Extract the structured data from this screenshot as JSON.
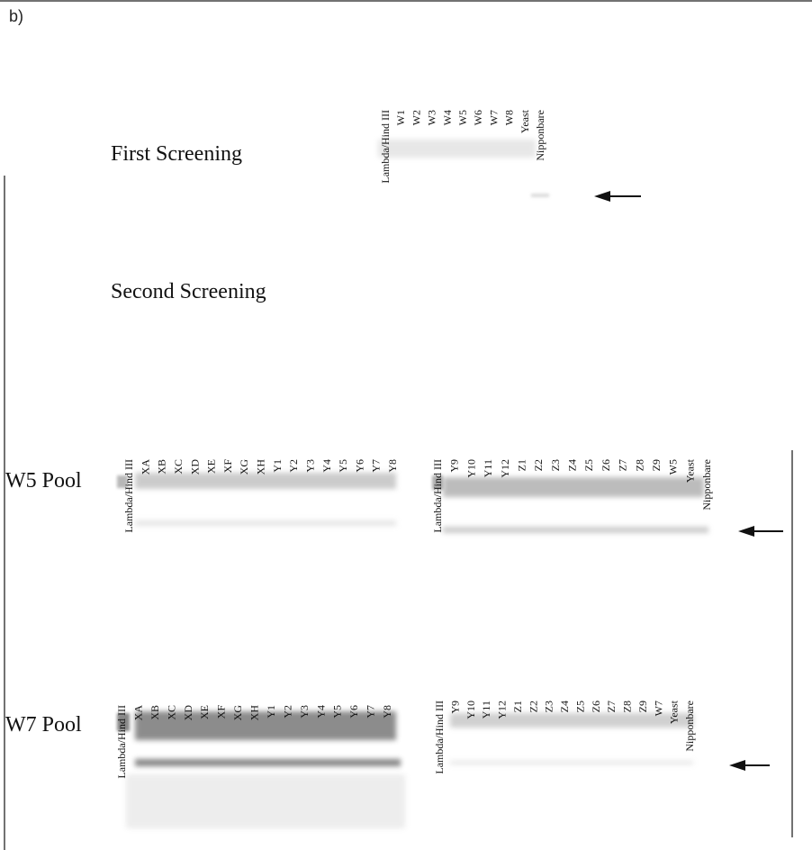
{
  "panel_label": "b)",
  "first_screening": {
    "title": "First Screening",
    "lanes": [
      "Lambda/Hind III",
      "W1",
      "W2",
      "W3",
      "W4",
      "W5",
      "W6",
      "W7",
      "W8",
      "Yeast",
      "Nipponbare"
    ]
  },
  "second_screening": {
    "title": "Second Screening",
    "pools": [
      {
        "label": "W5 Pool",
        "gels": [
          {
            "lanes": [
              "Lambda/Hind III",
              "XA",
              "XB",
              "XC",
              "XD",
              "XE",
              "XF",
              "XG",
              "XH",
              "Y1",
              "Y2",
              "Y3",
              "Y4",
              "Y5",
              "Y6",
              "Y7",
              "Y8"
            ]
          },
          {
            "lanes": [
              "Lambda/Hind III",
              "Y9",
              "Y10",
              "Y11",
              "Y12",
              "Z1",
              "Z2",
              "Z3",
              "Z4",
              "Z5",
              "Z6",
              "Z7",
              "Z8",
              "Z9",
              "W5",
              "Yeast",
              "Nipponbare"
            ]
          }
        ]
      },
      {
        "label": "W7 Pool",
        "gels": [
          {
            "lanes": [
              "Lambda/Hind III",
              "XA",
              "XB",
              "XC",
              "XD",
              "XE",
              "XF",
              "XG",
              "XH",
              "Y1",
              "Y2",
              "Y3",
              "Y4",
              "Y5",
              "Y6",
              "Y7",
              "Y8"
            ]
          },
          {
            "lanes": [
              "Lambda/Hind III",
              "Y9",
              "Y10",
              "Y11",
              "Y12",
              "Z1",
              "Z2",
              "Z3",
              "Z4",
              "Z5",
              "Z6",
              "Z7",
              "Z8",
              "Z9",
              "W7",
              "Yeast",
              "Nipponbare"
            ]
          }
        ]
      }
    ]
  }
}
